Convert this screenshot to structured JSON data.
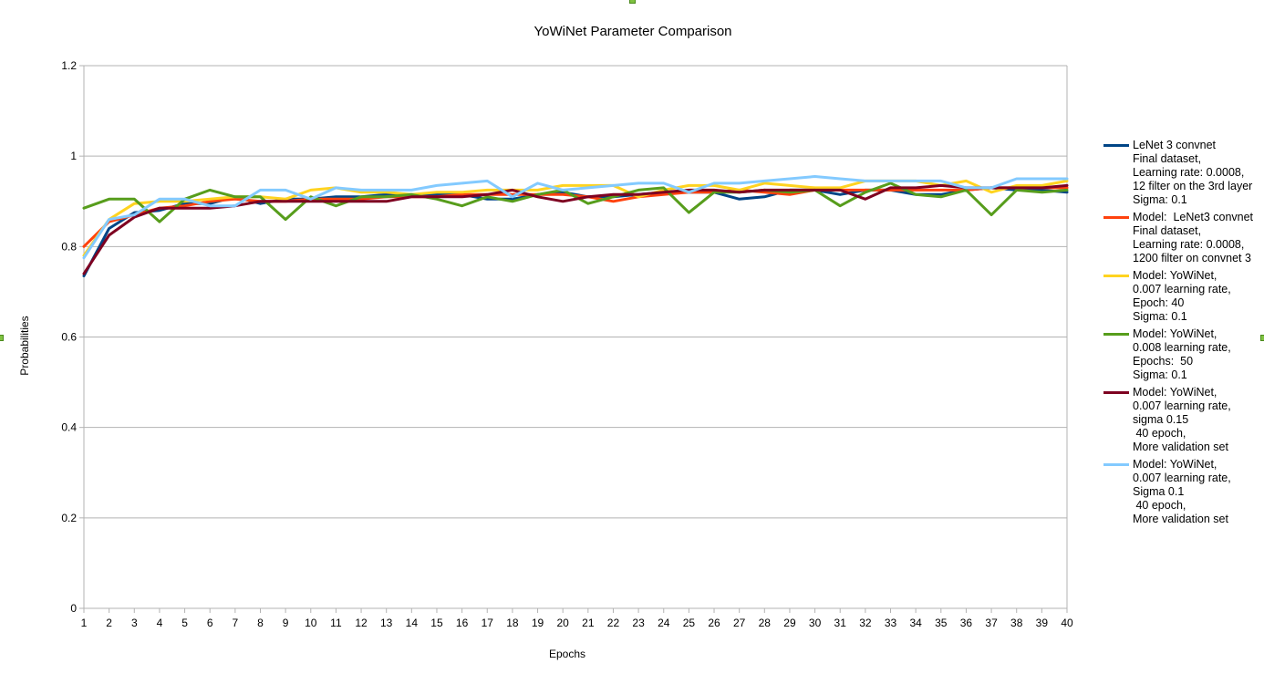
{
  "chart_data": {
    "type": "line",
    "title": "YoWiNet Parameter Comparison",
    "xlabel": "Epochs",
    "ylabel": "Probabilities",
    "ylim": [
      0,
      1.2
    ],
    "yticks": [
      "0",
      "0.2",
      "0.4",
      "0.6",
      "0.8",
      "1",
      "1.2"
    ],
    "categories": [
      "1",
      "2",
      "3",
      "4",
      "5",
      "6",
      "7",
      "8",
      "9",
      "10",
      "11",
      "12",
      "13",
      "14",
      "15",
      "16",
      "17",
      "18",
      "19",
      "20",
      "21",
      "22",
      "23",
      "24",
      "25",
      "26",
      "27",
      "28",
      "29",
      "30",
      "31",
      "32",
      "33",
      "34",
      "35",
      "36",
      "37",
      "38",
      "39",
      "40"
    ],
    "grid": "horizontal",
    "legend_position": "right",
    "series": [
      {
        "name": "LeNet 3 convnet\nFinal dataset,\nLearning rate: 0.0008,\n12 filter on the 3rd layer\nSigma: 0.1",
        "color": "#004586",
        "values": [
          0.735,
          0.84,
          0.875,
          0.88,
          0.895,
          0.895,
          0.91,
          0.895,
          0.905,
          0.905,
          0.91,
          0.91,
          0.915,
          0.915,
          0.915,
          0.915,
          0.905,
          0.905,
          0.915,
          0.92,
          0.91,
          0.91,
          0.915,
          0.92,
          0.92,
          0.92,
          0.905,
          0.91,
          0.925,
          0.925,
          0.915,
          0.925,
          0.925,
          0.915,
          0.915,
          0.925,
          0.93,
          0.925,
          0.925,
          0.92
        ]
      },
      {
        "name": "Model:  LeNet3 convnet\nFinal dataset,\nLearning rate: 0.0008,\n1200 filter on convnet 3",
        "color": "#ff420e",
        "values": [
          0.8,
          0.855,
          0.87,
          0.885,
          0.89,
          0.9,
          0.905,
          0.9,
          0.9,
          0.905,
          0.905,
          0.905,
          0.91,
          0.91,
          0.91,
          0.915,
          0.915,
          0.915,
          0.915,
          0.915,
          0.91,
          0.9,
          0.91,
          0.915,
          0.92,
          0.92,
          0.925,
          0.92,
          0.915,
          0.925,
          0.925,
          0.925,
          0.925,
          0.925,
          0.925,
          0.925,
          0.93,
          0.93,
          0.93,
          0.93
        ]
      },
      {
        "name": "Model: YoWiNet,\n0.007 learning rate,\nEpoch: 40\nSigma: 0.1",
        "color": "#ffd320",
        "values": [
          0.78,
          0.86,
          0.895,
          0.9,
          0.9,
          0.905,
          0.91,
          0.91,
          0.905,
          0.925,
          0.93,
          0.92,
          0.92,
          0.915,
          0.92,
          0.92,
          0.925,
          0.925,
          0.925,
          0.935,
          0.935,
          0.935,
          0.91,
          0.925,
          0.935,
          0.935,
          0.925,
          0.94,
          0.935,
          0.93,
          0.93,
          0.945,
          0.945,
          0.945,
          0.935,
          0.945,
          0.92,
          0.935,
          0.935,
          0.945
        ]
      },
      {
        "name": "Model: YoWiNet,\n0.008 learning rate,\nEpochs:  50\nSigma: 0.1",
        "color": "#579d1c",
        "values": [
          0.885,
          0.905,
          0.905,
          0.855,
          0.905,
          0.925,
          0.91,
          0.91,
          0.86,
          0.91,
          0.89,
          0.91,
          0.91,
          0.915,
          0.905,
          0.89,
          0.91,
          0.9,
          0.915,
          0.925,
          0.895,
          0.91,
          0.925,
          0.93,
          0.875,
          0.92,
          0.92,
          0.925,
          0.92,
          0.925,
          0.89,
          0.92,
          0.94,
          0.915,
          0.91,
          0.925,
          0.87,
          0.925,
          0.92,
          0.925
        ]
      },
      {
        "name": "Model: YoWiNet,\n0.007 learning rate,\nsigma 0.15\n 40 epoch,\nMore validation set",
        "color": "#7e0021",
        "values": [
          0.74,
          0.825,
          0.865,
          0.885,
          0.885,
          0.885,
          0.89,
          0.9,
          0.9,
          0.9,
          0.9,
          0.9,
          0.9,
          0.91,
          0.91,
          0.91,
          0.915,
          0.925,
          0.91,
          0.9,
          0.91,
          0.915,
          0.915,
          0.92,
          0.925,
          0.925,
          0.92,
          0.925,
          0.925,
          0.925,
          0.925,
          0.905,
          0.93,
          0.93,
          0.935,
          0.93,
          0.93,
          0.93,
          0.93,
          0.935
        ]
      },
      {
        "name": "Model: YoWiNet,\n0.007 learning rate,\nSigma 0.1\n 40 epoch,\nMore validation set",
        "color": "#83caff",
        "values": [
          0.775,
          0.86,
          0.87,
          0.905,
          0.905,
          0.89,
          0.89,
          0.925,
          0.925,
          0.905,
          0.93,
          0.925,
          0.925,
          0.925,
          0.935,
          0.94,
          0.945,
          0.91,
          0.94,
          0.925,
          0.93,
          0.935,
          0.94,
          0.94,
          0.92,
          0.94,
          0.94,
          0.945,
          0.95,
          0.955,
          0.95,
          0.945,
          0.945,
          0.945,
          0.945,
          0.93,
          0.93,
          0.95,
          0.95,
          0.95
        ]
      }
    ]
  }
}
